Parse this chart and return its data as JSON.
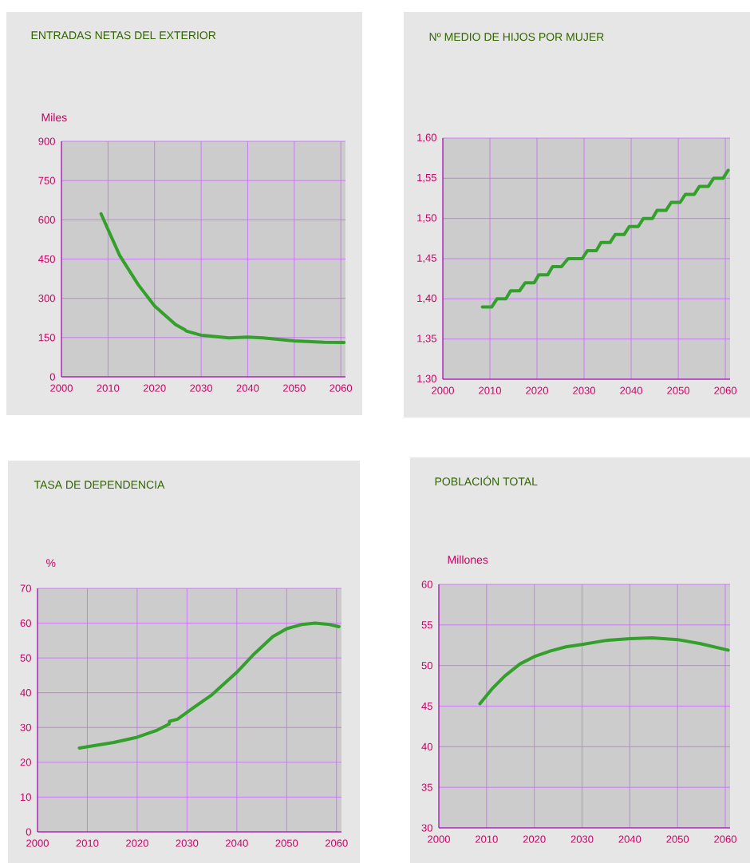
{
  "chart_data": [
    {
      "type": "line",
      "title": "ENTRADAS NETAS DEL EXTERIOR",
      "ylabel": "Miles",
      "grid": true,
      "xlim": [
        2000,
        2061
      ],
      "xticks": [
        2000,
        2010,
        2020,
        2030,
        2040,
        2050,
        2060
      ],
      "ylim": [
        0,
        900
      ],
      "yticks": [
        0,
        150,
        300,
        450,
        600,
        750,
        900
      ],
      "series": [
        {
          "color": "#33a02c",
          "x": [
            2008.5,
            2012.5,
            2016.5,
            2020,
            2024.5,
            2026.5,
            2026.8,
            2030,
            2036,
            2040,
            2043.3,
            2050,
            2056.4,
            2060.7
          ],
          "values": [
            623,
            464,
            352,
            271,
            200,
            180,
            175,
            159,
            149,
            152,
            149,
            137,
            132,
            131
          ]
        }
      ]
    },
    {
      "type": "line",
      "title": "Nº MEDIO DE HIJOS POR MUJER",
      "grid": true,
      "xlim": [
        2000,
        2061
      ],
      "xticks": [
        2000,
        2010,
        2020,
        2030,
        2040,
        2050,
        2060
      ],
      "ylim": [
        1.3,
        1.6
      ],
      "yticks": [
        {
          "value": 1.3,
          "label": "1,30"
        },
        {
          "value": 1.35,
          "label": "1,35"
        },
        {
          "value": 1.4,
          "label": "1,40"
        },
        {
          "value": 1.45,
          "label": "1,45"
        },
        {
          "value": 1.5,
          "label": "1,50"
        },
        {
          "value": 1.55,
          "label": "1,55"
        },
        {
          "value": 1.6,
          "label": "1,60"
        }
      ],
      "series": [
        {
          "color": "#33a02c",
          "x": [
            2008.4,
            2010.4,
            2011.5,
            2013.4,
            2014.4,
            2016.3,
            2017.5,
            2019.4,
            2020.4,
            2022.3,
            2023.3,
            2025.2,
            2026.6,
            2029.6,
            2030.7,
            2032.6,
            2033.6,
            2035.5,
            2036.6,
            2038.5,
            2039.6,
            2041.5,
            2042.6,
            2044.5,
            2045.5,
            2047.4,
            2048.5,
            2050.4,
            2051.5,
            2053.4,
            2054.5,
            2056.4,
            2057.5,
            2059.5,
            2060.6
          ],
          "values": [
            1.39,
            1.39,
            1.4,
            1.4,
            1.41,
            1.41,
            1.42,
            1.42,
            1.43,
            1.43,
            1.44,
            1.44,
            1.45,
            1.45,
            1.46,
            1.46,
            1.47,
            1.47,
            1.48,
            1.48,
            1.49,
            1.49,
            1.5,
            1.5,
            1.51,
            1.51,
            1.52,
            1.52,
            1.53,
            1.53,
            1.54,
            1.54,
            1.55,
            1.55,
            1.56
          ]
        }
      ]
    },
    {
      "type": "line",
      "title": "TASA DE DEPENDENCIA",
      "ylabel": "%",
      "grid": true,
      "xlim": [
        2000,
        2061
      ],
      "xticks": [
        2000,
        2010,
        2020,
        2030,
        2040,
        2050,
        2060
      ],
      "ylim": [
        0,
        70
      ],
      "yticks": [
        0,
        10,
        20,
        30,
        40,
        50,
        60,
        70
      ],
      "series": [
        {
          "color": "#33a02c",
          "x": [
            2008.4,
            2015.3,
            2020,
            2023.8,
            2026.4,
            2026.5,
            2028.1,
            2031.2,
            2035,
            2040,
            2043.5,
            2047.2,
            2050,
            2053,
            2055.7,
            2058.3,
            2060.5
          ],
          "values": [
            24.1,
            25.7,
            27.2,
            29.1,
            31.0,
            31.8,
            32.4,
            35.6,
            39.4,
            45.9,
            51.2,
            56.1,
            58.4,
            59.6,
            60.0,
            59.7,
            59.0
          ]
        }
      ]
    },
    {
      "type": "line",
      "title": "POBLACIÓN TOTAL",
      "ylabel": "Millones",
      "grid": true,
      "xlim": [
        2000,
        2061
      ],
      "xticks": [
        2000,
        2010,
        2020,
        2030,
        2040,
        2050,
        2060
      ],
      "ylim": [
        30,
        60
      ],
      "yticks": [
        30,
        35,
        40,
        45,
        50,
        55,
        60
      ],
      "series": [
        {
          "color": "#33a02c",
          "x": [
            2008.6,
            2011.1,
            2013.8,
            2017,
            2020,
            2023.4,
            2026.6,
            2030,
            2035.1,
            2040,
            2044.7,
            2050,
            2054.8,
            2060.6
          ],
          "values": [
            45.3,
            47.1,
            48.7,
            50.2,
            51.1,
            51.8,
            52.3,
            52.6,
            53.1,
            53.3,
            53.4,
            53.2,
            52.7,
            51.9
          ]
        }
      ]
    }
  ]
}
